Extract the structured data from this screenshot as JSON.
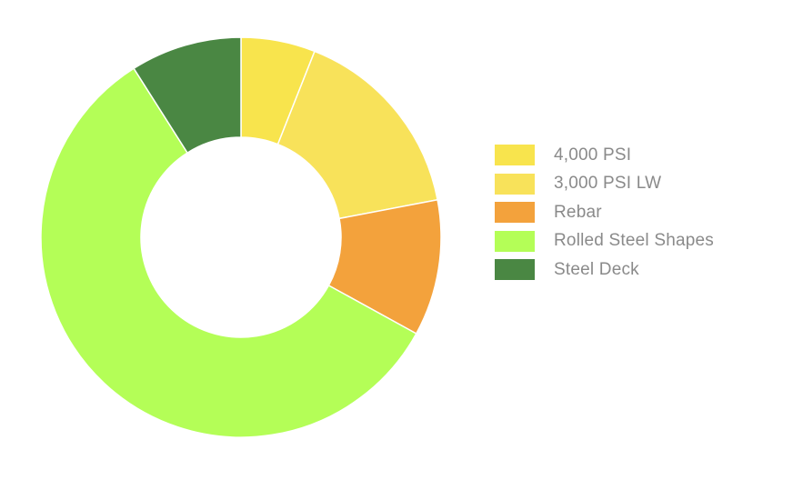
{
  "chart_data": {
    "type": "pie",
    "donut": true,
    "legend_position": "right",
    "slices": [
      {
        "label": "4,000 PSI",
        "value": 6.0,
        "color": "#F8E44D"
      },
      {
        "label": "3,000 PSI LW",
        "value": 16.0,
        "color": "#F8E25A"
      },
      {
        "label": "Rebar",
        "value": 11.0,
        "color": "#F3A23C"
      },
      {
        "label": "Rolled Steel Shapes",
        "value": 58.0,
        "color": "#B4FE57"
      },
      {
        "label": "Steel Deck",
        "value": 9.0,
        "color": "#4A8743"
      }
    ]
  }
}
